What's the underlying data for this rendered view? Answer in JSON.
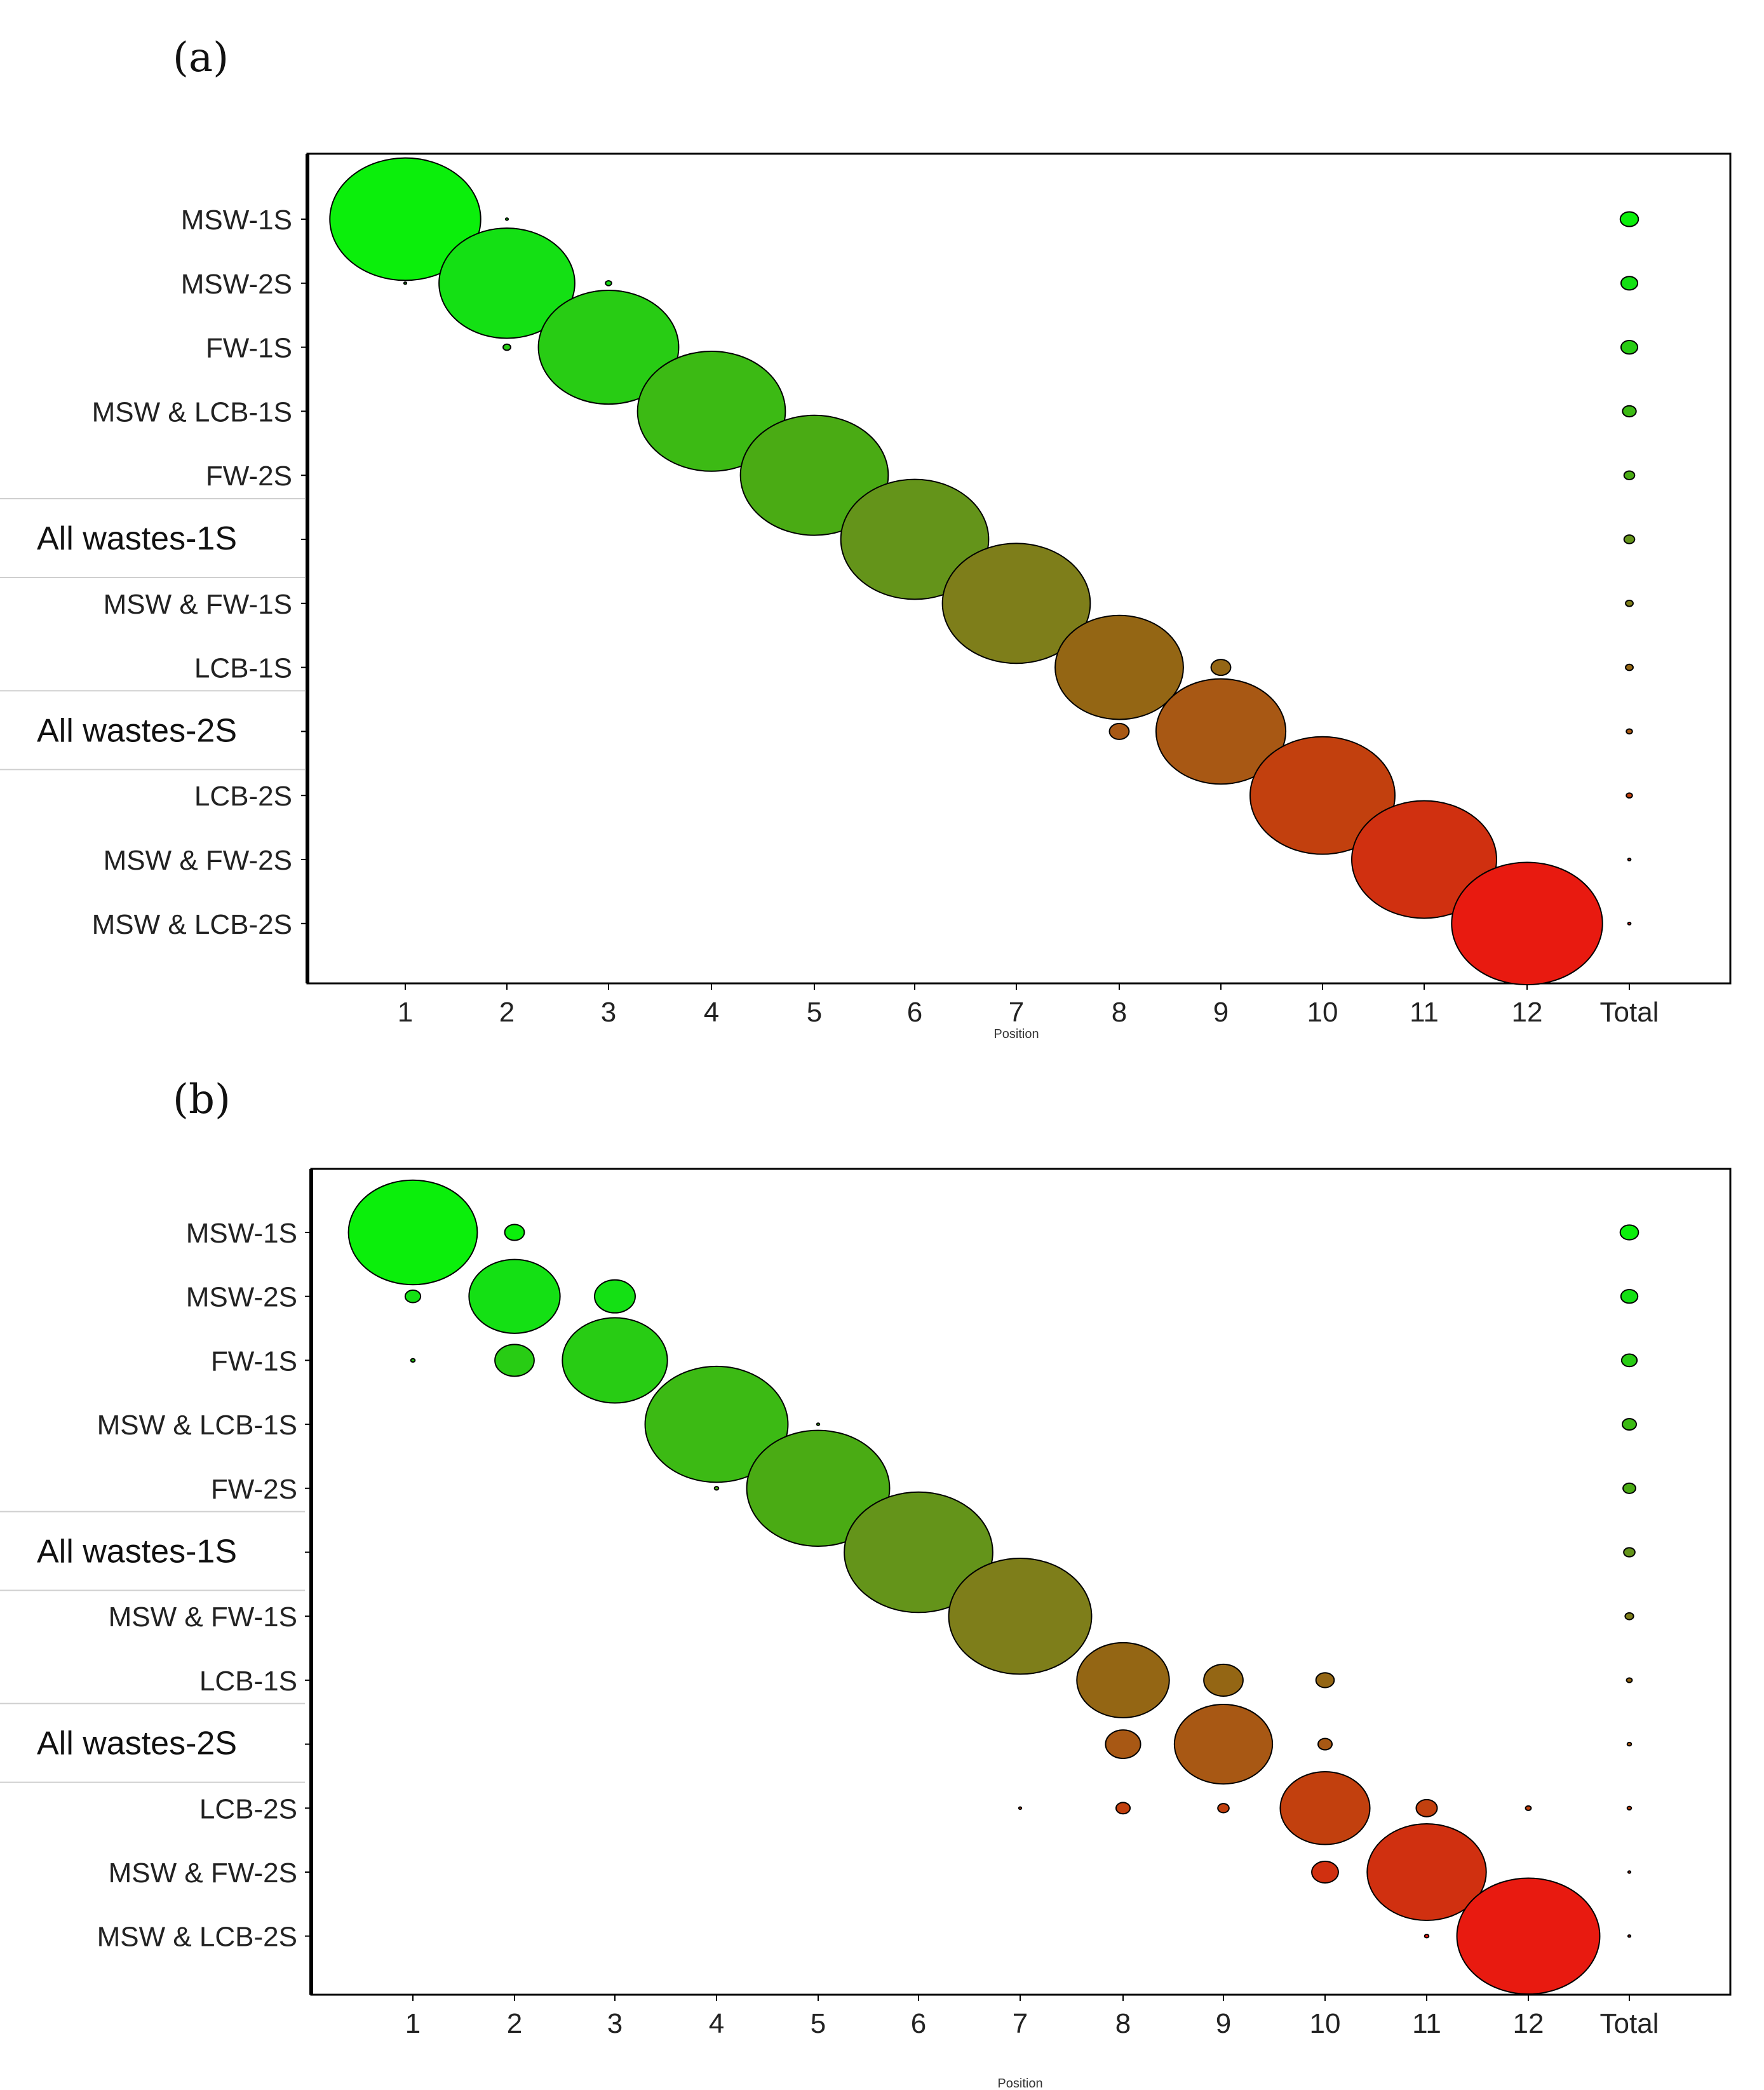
{
  "chart_data": [
    {
      "panel": "(a)",
      "type": "bubble",
      "xlabel": "Position",
      "x_categories": [
        "1",
        "2",
        "3",
        "4",
        "5",
        "6",
        "7",
        "8",
        "9",
        "10",
        "11",
        "12",
        "Total"
      ],
      "y_categories": [
        "MSW-1S",
        "MSW-2S",
        "FW-1S",
        "MSW & LCB-1S",
        "FW-2S",
        "All wastes-1S",
        "MSW & FW-1S",
        "LCB-1S",
        "All wastes-2S",
        "LCB-2S",
        "MSW & FW-2S",
        "MSW & LCB-2S"
      ],
      "highlighted_rows": [
        "All wastes-1S",
        "All wastes-2S"
      ],
      "row_colors": [
        "#0bef0b",
        "#14e014",
        "#28cc14",
        "#3cba14",
        "#4aab14",
        "#64941a",
        "#7e7e1a",
        "#946614",
        "#a85814",
        "#c2400e",
        "#d03010",
        "#e81a10"
      ],
      "values": [
        {
          "row": "MSW-1S",
          "pos": "1",
          "size": 1.0
        },
        {
          "row": "MSW-1S",
          "pos": "2",
          "size": 0.01
        },
        {
          "row": "MSW-1S",
          "pos": "Total",
          "size": 0.12
        },
        {
          "row": "MSW-2S",
          "pos": "2",
          "size": 0.9
        },
        {
          "row": "MSW-2S",
          "pos": "1",
          "size": 0.005
        },
        {
          "row": "MSW-2S",
          "pos": "3",
          "size": 0.04
        },
        {
          "row": "MSW-2S",
          "pos": "Total",
          "size": 0.11
        },
        {
          "row": "FW-1S",
          "pos": "3",
          "size": 0.93
        },
        {
          "row": "FW-1S",
          "pos": "2",
          "size": 0.05
        },
        {
          "row": "FW-1S",
          "pos": "Total",
          "size": 0.11
        },
        {
          "row": "MSW & LCB-1S",
          "pos": "4",
          "size": 0.98
        },
        {
          "row": "MSW & LCB-1S",
          "pos": "Total",
          "size": 0.09
        },
        {
          "row": "FW-2S",
          "pos": "5",
          "size": 0.98
        },
        {
          "row": "FW-2S",
          "pos": "Total",
          "size": 0.07
        },
        {
          "row": "All wastes-1S",
          "pos": "6",
          "size": 0.98
        },
        {
          "row": "All wastes-1S",
          "pos": "Total",
          "size": 0.07
        },
        {
          "row": "MSW & FW-1S",
          "pos": "7",
          "size": 0.98
        },
        {
          "row": "MSW & FW-1S",
          "pos": "Total",
          "size": 0.05
        },
        {
          "row": "LCB-1S",
          "pos": "8",
          "size": 0.85
        },
        {
          "row": "LCB-1S",
          "pos": "9",
          "size": 0.13
        },
        {
          "row": "LCB-1S",
          "pos": "Total",
          "size": 0.05
        },
        {
          "row": "All wastes-2S",
          "pos": "9",
          "size": 0.86
        },
        {
          "row": "All wastes-2S",
          "pos": "8",
          "size": 0.13
        },
        {
          "row": "All wastes-2S",
          "pos": "Total",
          "size": 0.04
        },
        {
          "row": "LCB-2S",
          "pos": "10",
          "size": 0.96
        },
        {
          "row": "LCB-2S",
          "pos": "Total",
          "size": 0.04
        },
        {
          "row": "MSW & FW-2S",
          "pos": "11",
          "size": 0.96
        },
        {
          "row": "MSW & FW-2S",
          "pos": "Total",
          "size": 0.02
        },
        {
          "row": "MSW & LCB-2S",
          "pos": "12",
          "size": 1.0
        },
        {
          "row": "MSW & LCB-2S",
          "pos": "Total",
          "size": 0.02
        }
      ]
    },
    {
      "panel": "(b)",
      "type": "bubble",
      "xlabel": "Position",
      "x_categories": [
        "1",
        "2",
        "3",
        "4",
        "5",
        "6",
        "7",
        "8",
        "9",
        "10",
        "11",
        "12",
        "Total"
      ],
      "y_categories": [
        "MSW-1S",
        "MSW-2S",
        "FW-1S",
        "MSW & LCB-1S",
        "FW-2S",
        "All wastes-1S",
        "MSW & FW-1S",
        "LCB-1S",
        "All wastes-2S",
        "LCB-2S",
        "MSW & FW-2S",
        "MSW & LCB-2S"
      ],
      "highlighted_rows": [
        "All wastes-1S",
        "All wastes-2S"
      ],
      "row_colors": [
        "#0bef0b",
        "#14e014",
        "#28cc14",
        "#3cba14",
        "#4aab14",
        "#64941a",
        "#7e7e1a",
        "#946614",
        "#a85814",
        "#c2400e",
        "#d03010",
        "#e81a10"
      ],
      "values": [
        {
          "row": "MSW-1S",
          "pos": "1",
          "size": 0.92
        },
        {
          "row": "MSW-1S",
          "pos": "2",
          "size": 0.14
        },
        {
          "row": "MSW-1S",
          "pos": "Total",
          "size": 0.13
        },
        {
          "row": "MSW-2S",
          "pos": "2",
          "size": 0.65
        },
        {
          "row": "MSW-2S",
          "pos": "1",
          "size": 0.11
        },
        {
          "row": "MSW-2S",
          "pos": "3",
          "size": 0.29
        },
        {
          "row": "MSW-2S",
          "pos": "Total",
          "size": 0.12
        },
        {
          "row": "FW-1S",
          "pos": "3",
          "size": 0.75
        },
        {
          "row": "FW-1S",
          "pos": "2",
          "size": 0.28
        },
        {
          "row": "FW-1S",
          "pos": "1",
          "size": 0.03
        },
        {
          "row": "FW-1S",
          "pos": "Total",
          "size": 0.11
        },
        {
          "row": "MSW & LCB-1S",
          "pos": "4",
          "size": 1.02
        },
        {
          "row": "MSW & LCB-1S",
          "pos": "5",
          "size": 0.02
        },
        {
          "row": "MSW & LCB-1S",
          "pos": "Total",
          "size": 0.1
        },
        {
          "row": "FW-2S",
          "pos": "5",
          "size": 1.02
        },
        {
          "row": "FW-2S",
          "pos": "4",
          "size": 0.03
        },
        {
          "row": "FW-2S",
          "pos": "Total",
          "size": 0.09
        },
        {
          "row": "All wastes-1S",
          "pos": "6",
          "size": 1.06
        },
        {
          "row": "All wastes-1S",
          "pos": "Total",
          "size": 0.08
        },
        {
          "row": "MSW & FW-1S",
          "pos": "7",
          "size": 1.02
        },
        {
          "row": "MSW & FW-1S",
          "pos": "Total",
          "size": 0.06
        },
        {
          "row": "LCB-1S",
          "pos": "8",
          "size": 0.66
        },
        {
          "row": "LCB-1S",
          "pos": "9",
          "size": 0.28
        },
        {
          "row": "LCB-1S",
          "pos": "10",
          "size": 0.13
        },
        {
          "row": "LCB-1S",
          "pos": "Total",
          "size": 0.04
        },
        {
          "row": "All wastes-2S",
          "pos": "9",
          "size": 0.7
        },
        {
          "row": "All wastes-2S",
          "pos": "8",
          "size": 0.25
        },
        {
          "row": "All wastes-2S",
          "pos": "10",
          "size": 0.1
        },
        {
          "row": "All wastes-2S",
          "pos": "Total",
          "size": 0.03
        },
        {
          "row": "LCB-2S",
          "pos": "10",
          "size": 0.64
        },
        {
          "row": "LCB-2S",
          "pos": "7",
          "size": 0.02
        },
        {
          "row": "LCB-2S",
          "pos": "8",
          "size": 0.1
        },
        {
          "row": "LCB-2S",
          "pos": "9",
          "size": 0.08
        },
        {
          "row": "LCB-2S",
          "pos": "11",
          "size": 0.15
        },
        {
          "row": "LCB-2S",
          "pos": "12",
          "size": 0.04
        },
        {
          "row": "LCB-2S",
          "pos": "Total",
          "size": 0.03
        },
        {
          "row": "MSW & FW-2S",
          "pos": "11",
          "size": 0.85
        },
        {
          "row": "MSW & FW-2S",
          "pos": "10",
          "size": 0.19
        },
        {
          "row": "MSW & FW-2S",
          "pos": "Total",
          "size": 0.01
        },
        {
          "row": "MSW & LCB-2S",
          "pos": "12",
          "size": 1.02
        },
        {
          "row": "MSW & LCB-2S",
          "pos": "11",
          "size": 0.03
        },
        {
          "row": "MSW & LCB-2S",
          "pos": "Total",
          "size": 0.01
        }
      ]
    }
  ]
}
